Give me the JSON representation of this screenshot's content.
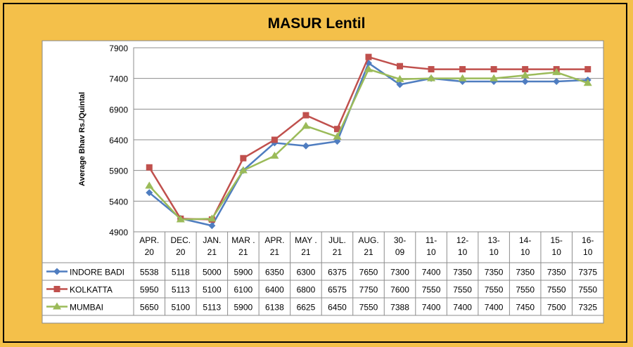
{
  "chart_data": {
    "type": "line",
    "title": "MASUR Lentil",
    "ylabel": "Average Bhav Rs./Quintal",
    "xlabel": "",
    "ylim": [
      4900,
      7900
    ],
    "yticks": [
      4900,
      5400,
      5900,
      6400,
      6900,
      7400,
      7900
    ],
    "grid": true,
    "legend": "data-table",
    "categories": [
      "APR. 20",
      "DEC. 20",
      "JAN. 21",
      "MAR . 21",
      "APR. 21",
      "MAY . 21",
      "JUL. 21",
      "AUG. 21",
      "30- 09",
      "11- 10",
      "12- 10",
      "13- 10",
      "14- 10",
      "15- 10",
      "16- 10"
    ],
    "series": [
      {
        "name": "INDORE BADI",
        "color": "#4f7dc0",
        "marker": "diamond",
        "values": [
          5538,
          5118,
          5000,
          5900,
          6350,
          6300,
          6375,
          7650,
          7300,
          7400,
          7350,
          7350,
          7350,
          7350,
          7375
        ]
      },
      {
        "name": "KOLKATTA",
        "color": "#c0504d",
        "marker": "square",
        "values": [
          5950,
          5113,
          5100,
          6100,
          6400,
          6800,
          6575,
          7750,
          7600,
          7550,
          7550,
          7550,
          7550,
          7550,
          7550
        ]
      },
      {
        "name": "MUMBAI",
        "color": "#9bbb59",
        "marker": "triangle",
        "values": [
          5650,
          5100,
          5113,
          5900,
          6138,
          6625,
          6450,
          7550,
          7388,
          7400,
          7400,
          7400,
          7450,
          7500,
          7325
        ]
      }
    ]
  }
}
